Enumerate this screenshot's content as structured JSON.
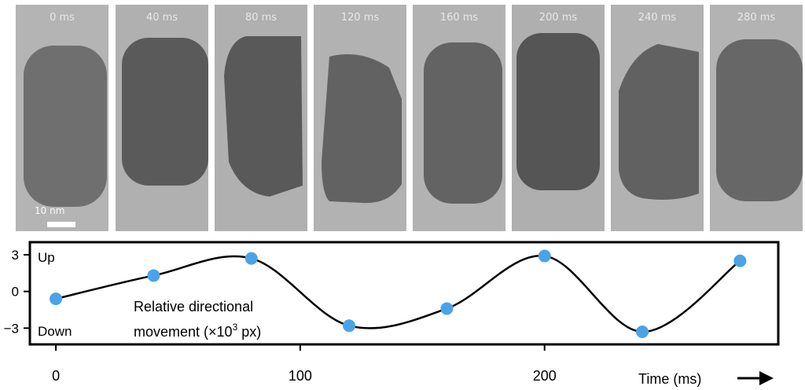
{
  "frames": [
    {
      "label": "0 ms"
    },
    {
      "label": "40 ms"
    },
    {
      "label": "80 ms"
    },
    {
      "label": "120 ms"
    },
    {
      "label": "160 ms"
    },
    {
      "label": "200 ms"
    },
    {
      "label": "240 ms"
    },
    {
      "label": "280 ms"
    }
  ],
  "scale_bar_label": "10 nm",
  "chart_data": {
    "type": "line",
    "x": [
      0,
      40,
      80,
      120,
      160,
      200,
      240,
      280
    ],
    "values": [
      -0.6,
      1.3,
      2.7,
      -2.8,
      -1.4,
      2.9,
      -3.3,
      2.5
    ],
    "xlim": [
      -10,
      295
    ],
    "ylim": [
      -4.2,
      3.9
    ],
    "xticks": [
      "0",
      "100",
      "200"
    ],
    "yticks": [
      "3",
      "0",
      "−3"
    ],
    "xlabel": "Time (ms)",
    "ylabel_lines": [
      "Relative directional",
      "movement (×10",
      "3",
      " px)"
    ],
    "annotations": {
      "up": "Up",
      "down": "Down"
    },
    "marker_color": "#4aa3e8",
    "line_color": "#000000",
    "grid": false
  }
}
